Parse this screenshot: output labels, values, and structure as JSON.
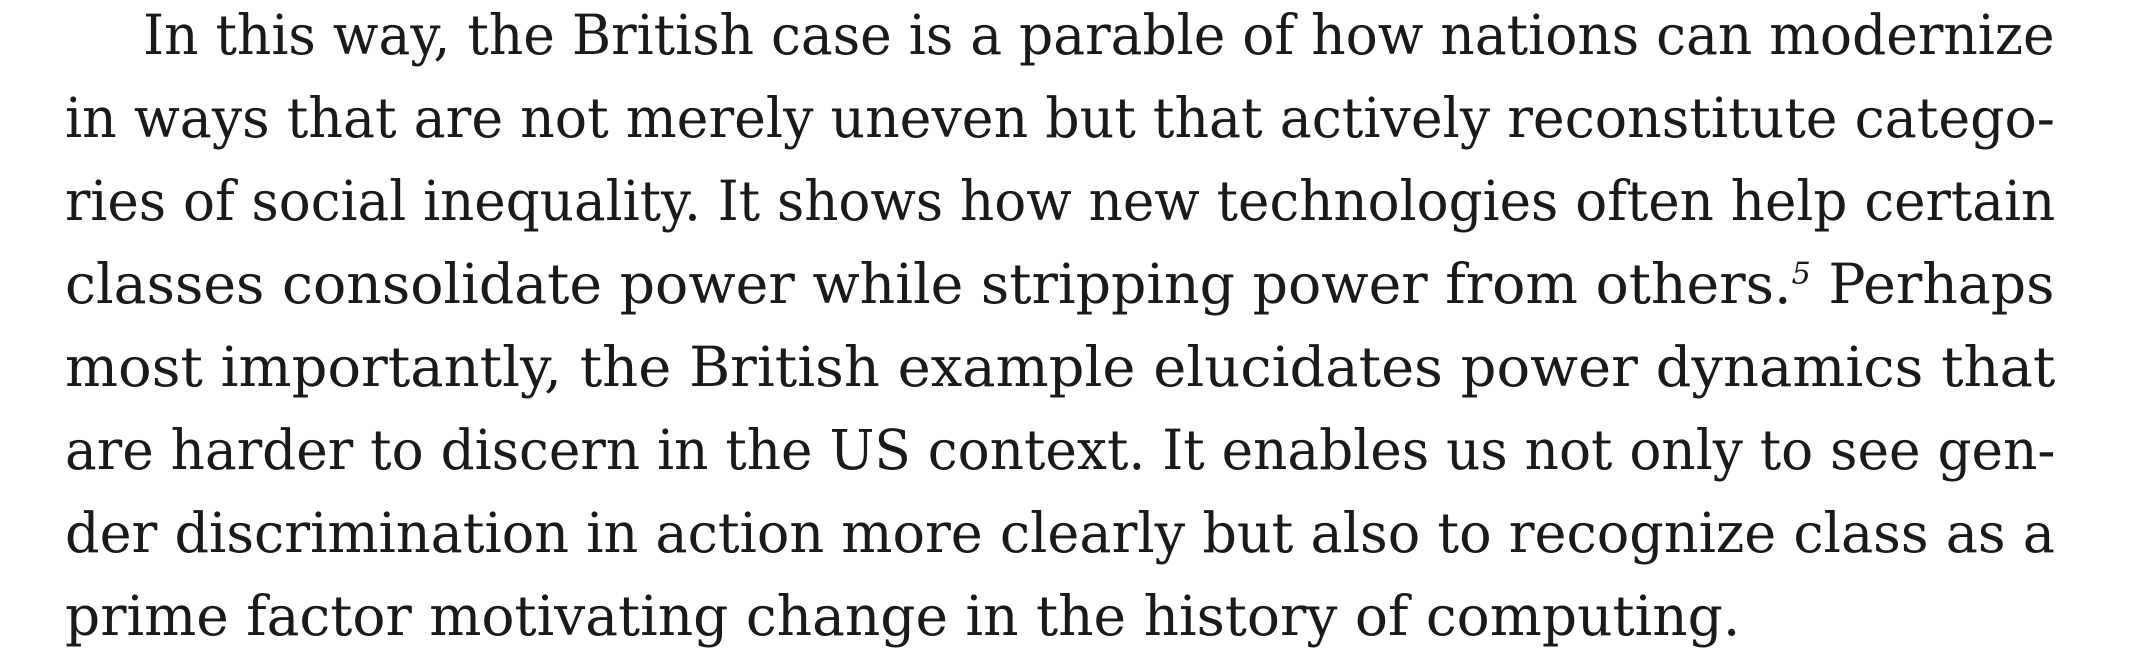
{
  "paragraph": {
    "lines": [
      "In this way, the British case is a parable of how nations can modernize",
      "in ways that are not merely uneven but that actively reconstitute catego-",
      "ries of social inequality. It shows how new technologies often help certain",
      "classes consolidate power while stripping power from others.",
      "most importantly, the British example elucidates power dynamics that",
      "are harder to discern in the US context. It enables us not only to see gen-",
      "der discrimination in action more clearly but also to recognize class as a",
      "prime factor motivating change in the history of computing."
    ],
    "footnote_marker": "5",
    "line4_tail": " Perhaps"
  }
}
